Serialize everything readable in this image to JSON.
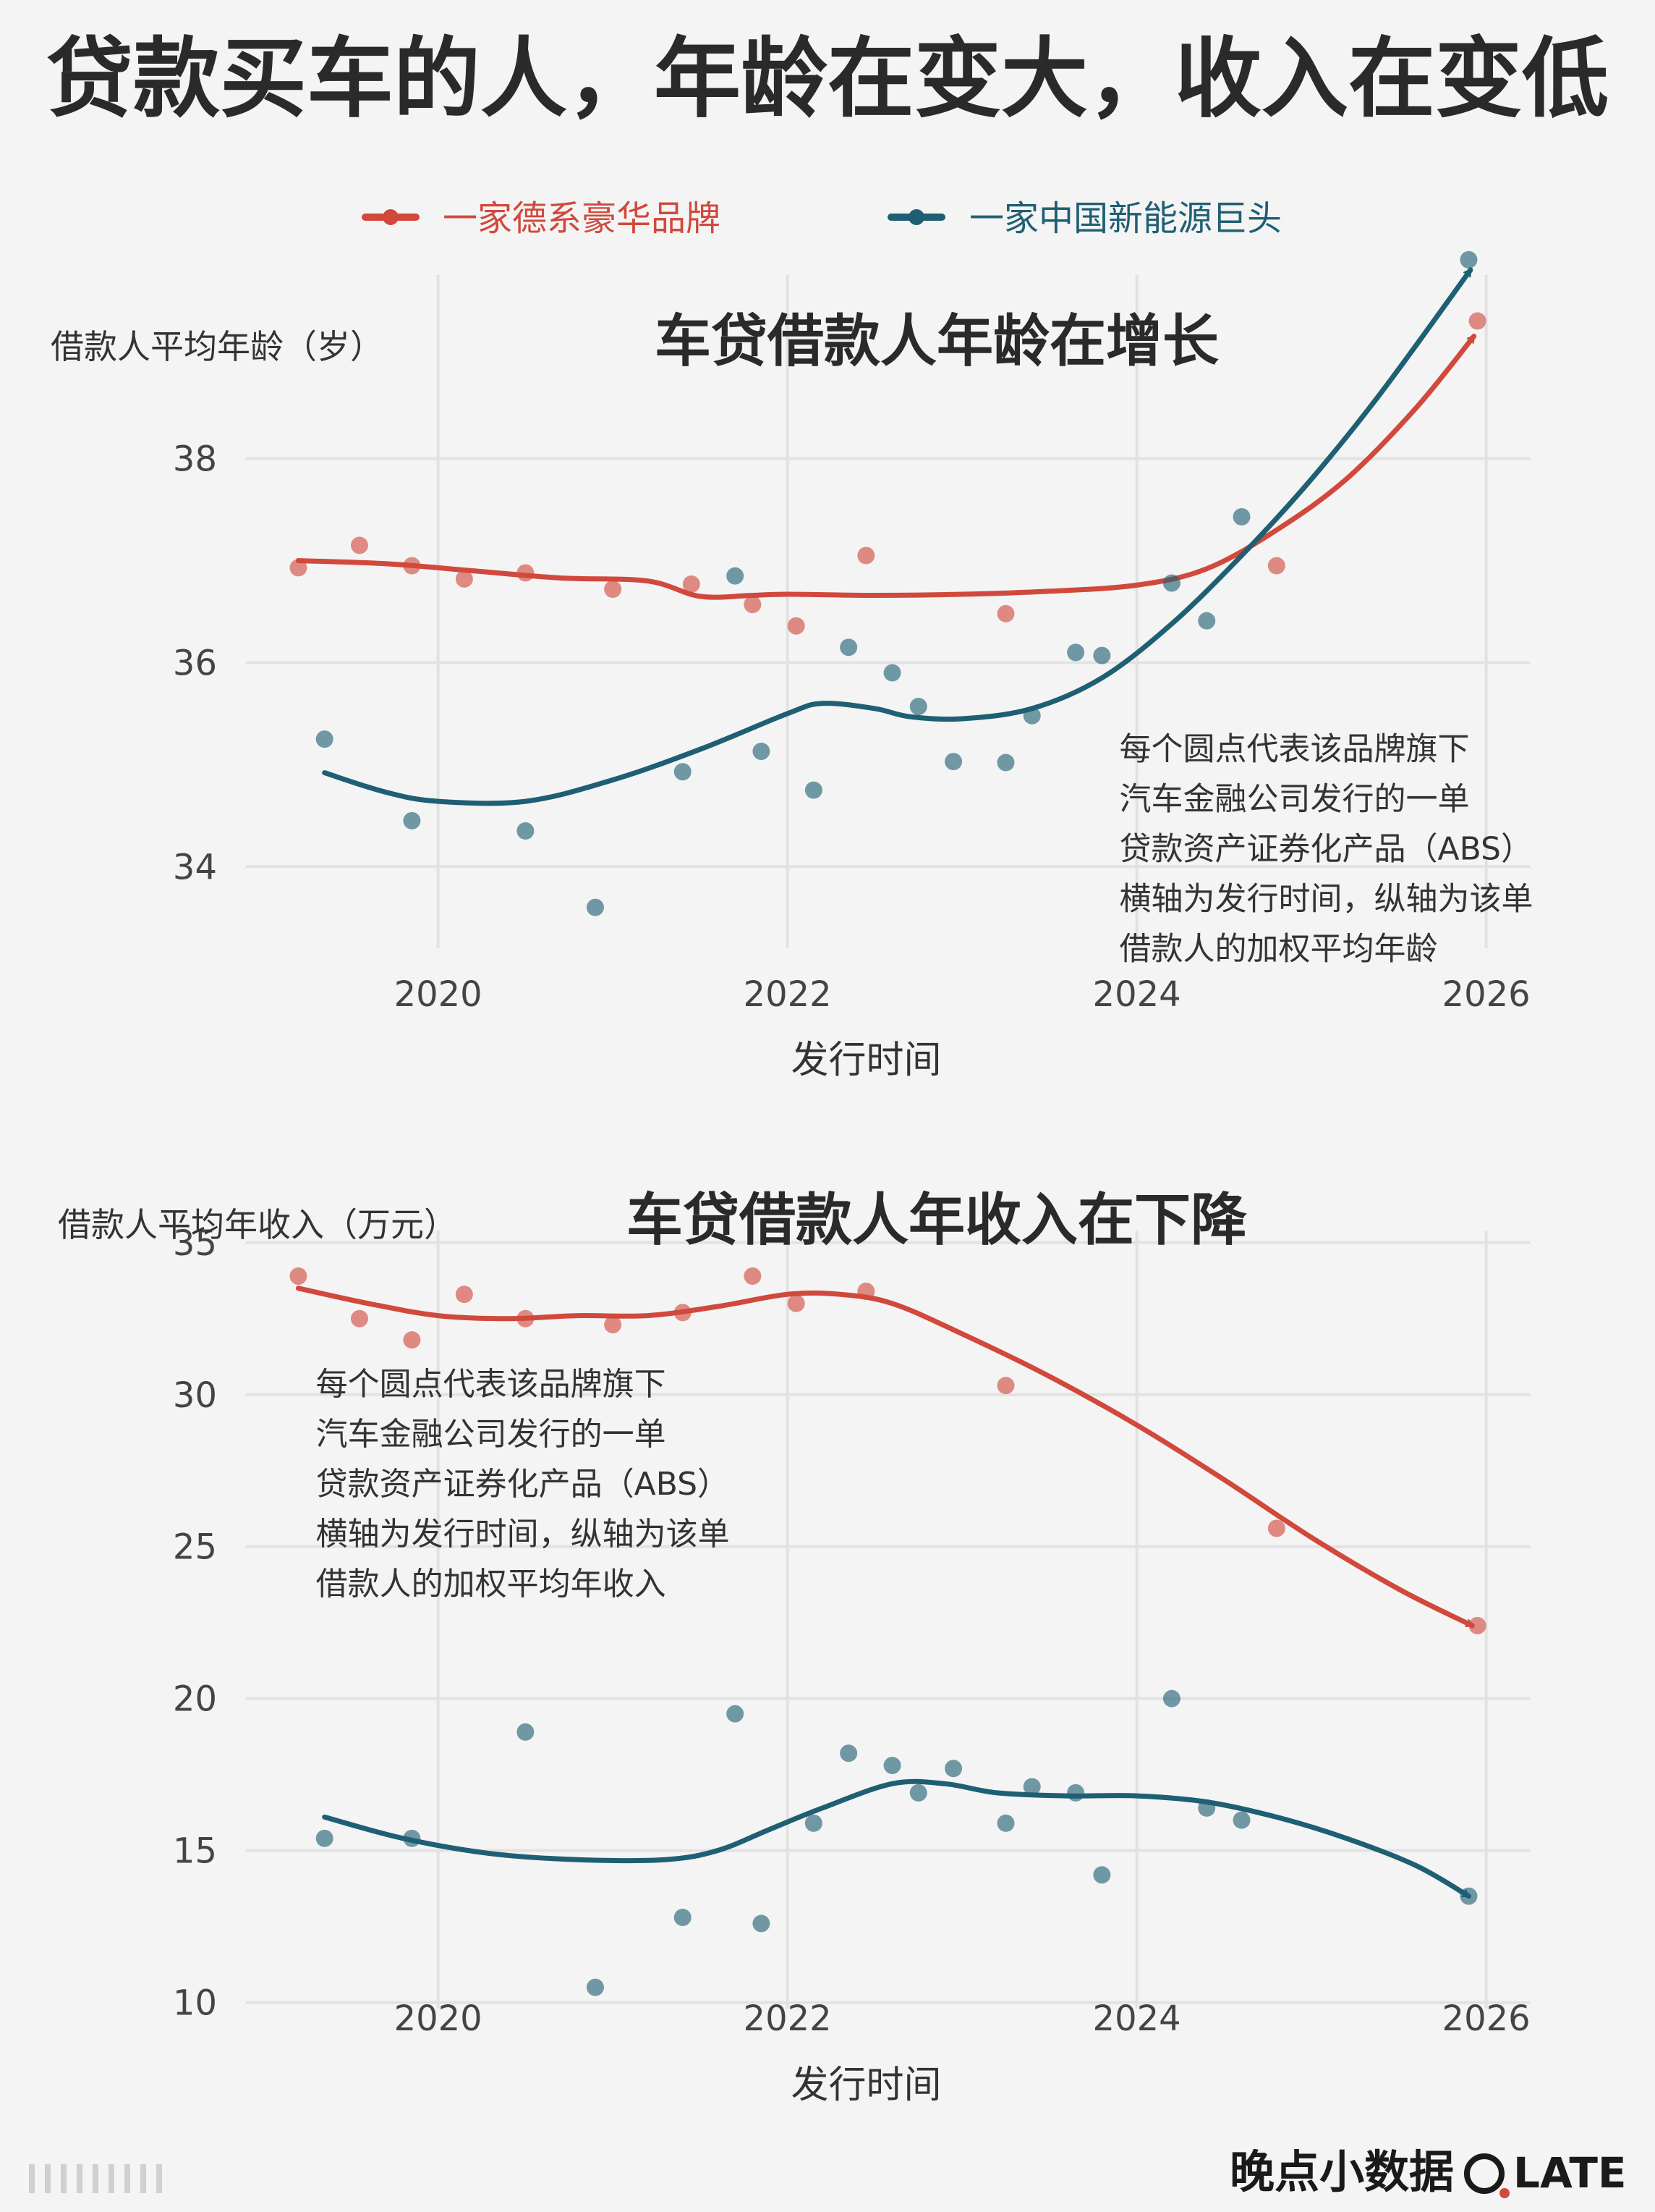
{
  "title": "贷款买车的人，年龄在变大，收入在变低",
  "colors": {
    "red": "#d1493c",
    "teal": "#1f5f73",
    "grid": "#e2e2e2",
    "text": "#333333",
    "bg": "#f4f4f4"
  },
  "legend": [
    {
      "key": "red",
      "label": "一家德系豪华品牌"
    },
    {
      "key": "teal",
      "label": "一家中国新能源巨头"
    }
  ],
  "footer": {
    "logo": "晚点小数据",
    "late": "LATE"
  },
  "chart_data": [
    {
      "type": "scatter",
      "title": "车贷借款人年龄在增长",
      "ylabel": "借款人平均年龄（岁）",
      "xlabel": "发行时间",
      "xlim": [
        2018.9,
        2026.25
      ],
      "ylim": [
        33.2,
        39.8
      ],
      "xticks": [
        2020,
        2022,
        2024,
        2026
      ],
      "yticks": [
        34,
        36,
        38
      ],
      "grid": true,
      "legend": "top",
      "annotation": [
        "每个圆点代表该品牌旗下",
        "汽车金融公司发行的一单",
        "贷款资产证券化产品（ABS）",
        "横轴为发行时间，纵轴为该单",
        "借款人的加权平均年龄"
      ],
      "annotation_anchor": [
        2023.9,
        35.05
      ],
      "series": [
        {
          "name": "一家德系豪华品牌",
          "color_key": "red",
          "points": [
            [
              2019.2,
              36.93
            ],
            [
              2019.55,
              37.15
            ],
            [
              2019.85,
              36.95
            ],
            [
              2020.15,
              36.82
            ],
            [
              2020.5,
              36.88
            ],
            [
              2021.0,
              36.72
            ],
            [
              2021.45,
              36.77
            ],
            [
              2021.8,
              36.57
            ],
            [
              2022.05,
              36.36
            ],
            [
              2022.45,
              37.05
            ],
            [
              2023.25,
              36.48
            ],
            [
              2024.8,
              36.95
            ],
            [
              2025.95,
              39.35
            ]
          ],
          "trend": [
            [
              2019.2,
              37.0
            ],
            [
              2019.7,
              36.97
            ],
            [
              2020.2,
              36.9
            ],
            [
              2020.7,
              36.83
            ],
            [
              2021.2,
              36.8
            ],
            [
              2021.5,
              36.65
            ],
            [
              2021.8,
              36.66
            ],
            [
              2022.0,
              36.67
            ],
            [
              2022.5,
              36.66
            ],
            [
              2023.0,
              36.67
            ],
            [
              2023.5,
              36.7
            ],
            [
              2024.0,
              36.76
            ],
            [
              2024.4,
              36.92
            ],
            [
              2024.8,
              37.3
            ],
            [
              2025.2,
              37.8
            ],
            [
              2025.6,
              38.5
            ],
            [
              2025.93,
              39.2
            ]
          ]
        },
        {
          "name": "一家中国新能源巨头",
          "color_key": "teal",
          "points": [
            [
              2019.35,
              35.25
            ],
            [
              2019.85,
              34.45
            ],
            [
              2020.5,
              34.35
            ],
            [
              2020.9,
              33.6
            ],
            [
              2021.4,
              34.93
            ],
            [
              2021.7,
              36.85
            ],
            [
              2021.85,
              35.13
            ],
            [
              2022.15,
              34.75
            ],
            [
              2022.35,
              36.15
            ],
            [
              2022.6,
              35.9
            ],
            [
              2022.75,
              35.57
            ],
            [
              2022.95,
              35.03
            ],
            [
              2023.25,
              35.02
            ],
            [
              2023.4,
              35.48
            ],
            [
              2023.65,
              36.1
            ],
            [
              2023.8,
              36.07
            ],
            [
              2024.2,
              36.78
            ],
            [
              2024.4,
              36.41
            ],
            [
              2024.6,
              37.43
            ],
            [
              2025.9,
              39.95
            ]
          ],
          "trend": [
            [
              2019.35,
              34.92
            ],
            [
              2019.7,
              34.73
            ],
            [
              2020.0,
              34.64
            ],
            [
              2020.5,
              34.64
            ],
            [
              2021.0,
              34.85
            ],
            [
              2021.5,
              35.15
            ],
            [
              2022.0,
              35.5
            ],
            [
              2022.2,
              35.6
            ],
            [
              2022.5,
              35.55
            ],
            [
              2022.7,
              35.47
            ],
            [
              2023.0,
              35.45
            ],
            [
              2023.4,
              35.55
            ],
            [
              2023.8,
              35.85
            ],
            [
              2024.2,
              36.38
            ],
            [
              2024.6,
              37.05
            ],
            [
              2025.0,
              37.8
            ],
            [
              2025.4,
              38.65
            ],
            [
              2025.91,
              39.85
            ]
          ]
        }
      ]
    },
    {
      "type": "scatter",
      "title": "车贷借款人年收入在下降",
      "ylabel": "借款人平均年收入（万元）",
      "xlabel": "发行时间",
      "xlim": [
        2018.9,
        2026.25
      ],
      "ylim": [
        9.8,
        35.4
      ],
      "xticks": [
        2020,
        2022,
        2024,
        2026
      ],
      "yticks": [
        10,
        15,
        20,
        25,
        30,
        35
      ],
      "grid": true,
      "annotation": [
        "每个圆点代表该品牌旗下",
        "汽车金融公司发行的一单",
        "贷款资产证券化产品（ABS）",
        "横轴为发行时间，纵轴为该单",
        "借款人的加权平均年收入"
      ],
      "annotation_anchor": [
        2019.3,
        30.0
      ],
      "series": [
        {
          "name": "一家德系豪华品牌",
          "color_key": "red",
          "points": [
            [
              2019.2,
              33.9
            ],
            [
              2019.55,
              32.5
            ],
            [
              2019.85,
              31.8
            ],
            [
              2020.15,
              33.3
            ],
            [
              2020.5,
              32.5
            ],
            [
              2021.0,
              32.3
            ],
            [
              2021.4,
              32.7
            ],
            [
              2021.8,
              33.9
            ],
            [
              2022.05,
              33.0
            ],
            [
              2022.45,
              33.4
            ],
            [
              2023.25,
              30.3
            ],
            [
              2024.8,
              25.6
            ],
            [
              2025.95,
              22.4
            ]
          ],
          "trend": [
            [
              2019.2,
              33.5
            ],
            [
              2019.6,
              33.0
            ],
            [
              2020.0,
              32.6
            ],
            [
              2020.4,
              32.5
            ],
            [
              2020.8,
              32.6
            ],
            [
              2021.2,
              32.6
            ],
            [
              2021.6,
              32.9
            ],
            [
              2022.0,
              33.3
            ],
            [
              2022.3,
              33.3
            ],
            [
              2022.6,
              33.0
            ],
            [
              2023.0,
              32.0
            ],
            [
              2023.5,
              30.6
            ],
            [
              2024.0,
              29.0
            ],
            [
              2024.5,
              27.2
            ],
            [
              2025.0,
              25.3
            ],
            [
              2025.5,
              23.6
            ],
            [
              2025.92,
              22.4
            ]
          ]
        },
        {
          "name": "一家中国新能源巨头",
          "color_key": "teal",
          "points": [
            [
              2019.35,
              15.4
            ],
            [
              2019.85,
              15.4
            ],
            [
              2020.5,
              18.9
            ],
            [
              2020.9,
              10.5
            ],
            [
              2021.4,
              12.8
            ],
            [
              2021.7,
              19.5
            ],
            [
              2021.85,
              12.6
            ],
            [
              2022.15,
              15.9
            ],
            [
              2022.35,
              18.2
            ],
            [
              2022.6,
              17.8
            ],
            [
              2022.75,
              16.9
            ],
            [
              2022.95,
              17.7
            ],
            [
              2023.25,
              15.9
            ],
            [
              2023.4,
              17.1
            ],
            [
              2023.65,
              16.9
            ],
            [
              2023.8,
              14.2
            ],
            [
              2024.2,
              20.0
            ],
            [
              2024.4,
              16.4
            ],
            [
              2024.6,
              16.0
            ],
            [
              2025.9,
              13.5
            ]
          ],
          "trend": [
            [
              2019.35,
              16.1
            ],
            [
              2019.8,
              15.4
            ],
            [
              2020.3,
              14.9
            ],
            [
              2020.8,
              14.7
            ],
            [
              2021.3,
              14.7
            ],
            [
              2021.6,
              15.0
            ],
            [
              2021.9,
              15.7
            ],
            [
              2022.2,
              16.4
            ],
            [
              2022.6,
              17.2
            ],
            [
              2022.9,
              17.2
            ],
            [
              2023.2,
              16.9
            ],
            [
              2023.6,
              16.8
            ],
            [
              2024.0,
              16.8
            ],
            [
              2024.4,
              16.6
            ],
            [
              2024.8,
              16.1
            ],
            [
              2025.2,
              15.4
            ],
            [
              2025.6,
              14.5
            ],
            [
              2025.9,
              13.5
            ]
          ]
        }
      ]
    }
  ]
}
